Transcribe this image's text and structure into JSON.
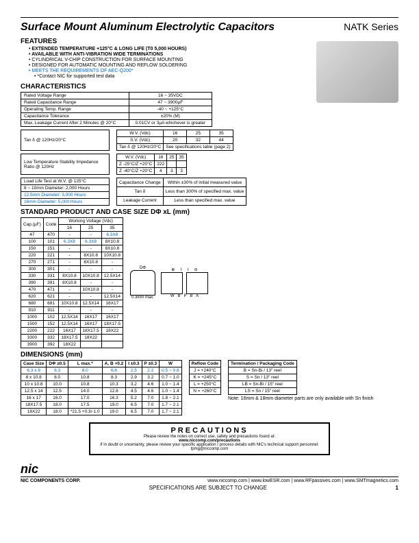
{
  "title": "Surface Mount Aluminum Electrolytic Capacitors",
  "series": "NATK Series",
  "features_h": "FEATURES",
  "features": [
    {
      "t": "EXTENDED TEMPERATURE +125°C & LONG LIFE (T0 5,000 HOURS)",
      "b": true
    },
    {
      "t": "AVAILABLE WITH ANTI-VIBRATION WIDE TERMINATIONS",
      "b": true
    },
    {
      "t": "CYLINDRICAL V-CHIP CONSTRUCTION FOR SURFACE MOUNTING"
    },
    {
      "t": "DESIGNED FOR AUTOMATIC MOUNTING AND REFLOW   SOLDERING"
    },
    {
      "t": "MEETS THE REQUIREMENTS OF AEC-Q200*",
      "blue": true
    },
    {
      "t": "*Contact NIC for supported test data",
      "indent": true
    }
  ],
  "char_h": "CHARACTERISTICS",
  "char_rows": [
    [
      "Rated Voltage Range",
      "16 ~ 35VDC"
    ],
    [
      "Rated Capacitance Range",
      "47 ~ 3900μF"
    ],
    [
      "Operating Temp. Range",
      "-40 ~ +125°C"
    ],
    [
      "Capacitance Tolerance",
      "±20% (M)"
    ],
    [
      "Max. Leakage Current After 2 Minutes @ 20°C",
      "0.01CV or 3μA whichever is greater"
    ]
  ],
  "char2": {
    "tan_label": "Tan δ @ 120Hz/20°C",
    "r1": [
      "W.V. (Vdc)",
      "16",
      "25",
      "35"
    ],
    "r2": [
      "S.V. (Vdc)",
      "20",
      "32",
      "44"
    ],
    "r3": [
      "Tan δ @ 120Hz/20°C",
      "See specifications table (page 2)"
    ]
  },
  "lts": {
    "label": "Low Temperature Stability\nImpedance Ratio @ 120Hz",
    "r1": [
      "W.V. (Vdc)",
      "16",
      "25",
      "35"
    ],
    "r2": [
      "Z -25°C/Z +20°C",
      "222",
      "",
      ""
    ],
    "r3": [
      "Z -40°C/Z +20°C",
      "4",
      "3",
      "3"
    ]
  },
  "lifetest": {
    "l1": "Load Life Test at W.V. @ 125°C",
    "l2": "8 ~ 10mm Diameter: 2,000 Hours",
    "l3": "12.5mm Diameter: 3,000 Hours",
    "l4": "16mm Diameter: 5,000 Hours",
    "cc": "Capacitance Change",
    "cc_v": "Within ±30% of initial measured value",
    "td": "Tan δ",
    "td_v": "Less than 300% of specified max. value",
    "lc": "Leakage Current",
    "lc_v": "Less than specified max. value"
  },
  "std_h": "STANDARD PRODUCT AND CASE SIZE DΦ xL (mm)",
  "std_head": [
    "Cap.(μF)",
    "Code",
    "16",
    "25",
    "35"
  ],
  "std_wv": "Working Voltage  (Vdc)",
  "std_rows": [
    [
      "47",
      "470",
      "-",
      "-",
      "6.3X8"
    ],
    [
      "100",
      "101",
      "6.3X8",
      "6.3X8",
      "8X10.8"
    ],
    [
      "150",
      "151",
      "-",
      "-",
      "8X10.8"
    ],
    [
      "220",
      "221",
      "-",
      "8X10.8",
      "10X10.8"
    ],
    [
      "270",
      "271",
      "-",
      "8X10.8",
      "-"
    ],
    [
      "300",
      "301",
      "-",
      "-",
      "-"
    ],
    [
      "330",
      "331",
      "8X10.8",
      "10X10.8",
      "12.5X14"
    ],
    [
      "390",
      "391",
      "8X10.8",
      "-",
      "-"
    ],
    [
      "470",
      "471",
      "-",
      "10X10.8",
      "-"
    ],
    [
      "620",
      "621",
      "-",
      "-",
      "12.5X14"
    ],
    [
      "680",
      "681",
      "10X10.8",
      "12.5X14",
      "16X17"
    ],
    [
      "910",
      "911",
      "-",
      "-",
      "-"
    ],
    [
      "1000",
      "102",
      "12.5X14",
      "16X17",
      "16X17"
    ],
    [
      "1500",
      "152",
      "12.5X14",
      "16X17",
      "18X17.5"
    ],
    [
      "2200",
      "222",
      "16X17",
      "18X17.5",
      "18X22"
    ],
    [
      "3300",
      "332",
      "18X17.5",
      "18X22",
      ""
    ],
    [
      "3900",
      "392",
      "18X22",
      "",
      ""
    ]
  ],
  "dim_h": "DIMENSIONS (mm)",
  "dim_head": [
    "Case Size",
    "DΦ ±0.5",
    "L max.*",
    "A, B +0.2",
    "I ±0.3",
    "P ±0.3",
    "W"
  ],
  "dim_rows": [
    [
      "6.3 x 8",
      "6.3",
      "8.0",
      "6.6",
      "2.5",
      "2.2",
      "0.5 ~ 0.8"
    ],
    [
      "8 x 10.8",
      "8.0",
      "10.8",
      "8.3",
      "2.9",
      "3.2",
      "0.7 ~ 1.0"
    ],
    [
      "10 x 10.8",
      "10.0",
      "10.8",
      "10.3",
      "3.2",
      "4.6",
      "1.0 ~ 1.4"
    ],
    [
      "12.5 x 14",
      "12.5",
      "14.0",
      "12.8",
      "4.5",
      "4.6",
      "1.0 ~ 1.4"
    ],
    [
      "16 x 17",
      "16.0",
      "17.0",
      "16.3",
      "5.2",
      "7.0",
      "1.8 ~ 2.1"
    ],
    [
      "18X17.5",
      "18.0",
      "17.5",
      "19.0",
      "6.5",
      "7.0",
      "1.7 ~ 2.1"
    ],
    [
      "18X22",
      "18.0",
      "*21.5 +0.3/-1.0",
      "19.0",
      "6.5",
      "7.0",
      "1.7 ~ 2.1"
    ]
  ],
  "reflow_head": "Reflow Code",
  "reflow": [
    "J = +240°C",
    "K = +245°C",
    "L = +250°C",
    "N = +260°C"
  ],
  "term_head": "Termination / Packaging Code",
  "term": [
    "B = Sn-Bi / 13\" reel",
    "S = Sn / 13\" reel",
    "LB = Sn-Bi / 15\" reel",
    "LS = Sn / 15\" reel"
  ],
  "term_note": "Note: 16mm & 18mm diameter parts are only available with Sn finish",
  "prec_title": "PRECAUTIONS",
  "prec1": "Please review the notes on correct use, safety and precautions found at:",
  "prec2": "www.niccomp.com/precautions",
  "prec3": "If in doubt or uncertainty, please review your specific application / process details with NIC's technical support personnel: tpmg@niccomp.com",
  "corp": "NIC COMPONENTS CORP.",
  "urls": "www.niccomp.com    |    www.lowESR.com    |    www.RFpassives.com    |    www.SMTmagnetics.com",
  "spec": "SPECIFICATIONS ARE SUBJECT TO CHANGE",
  "page": "1"
}
